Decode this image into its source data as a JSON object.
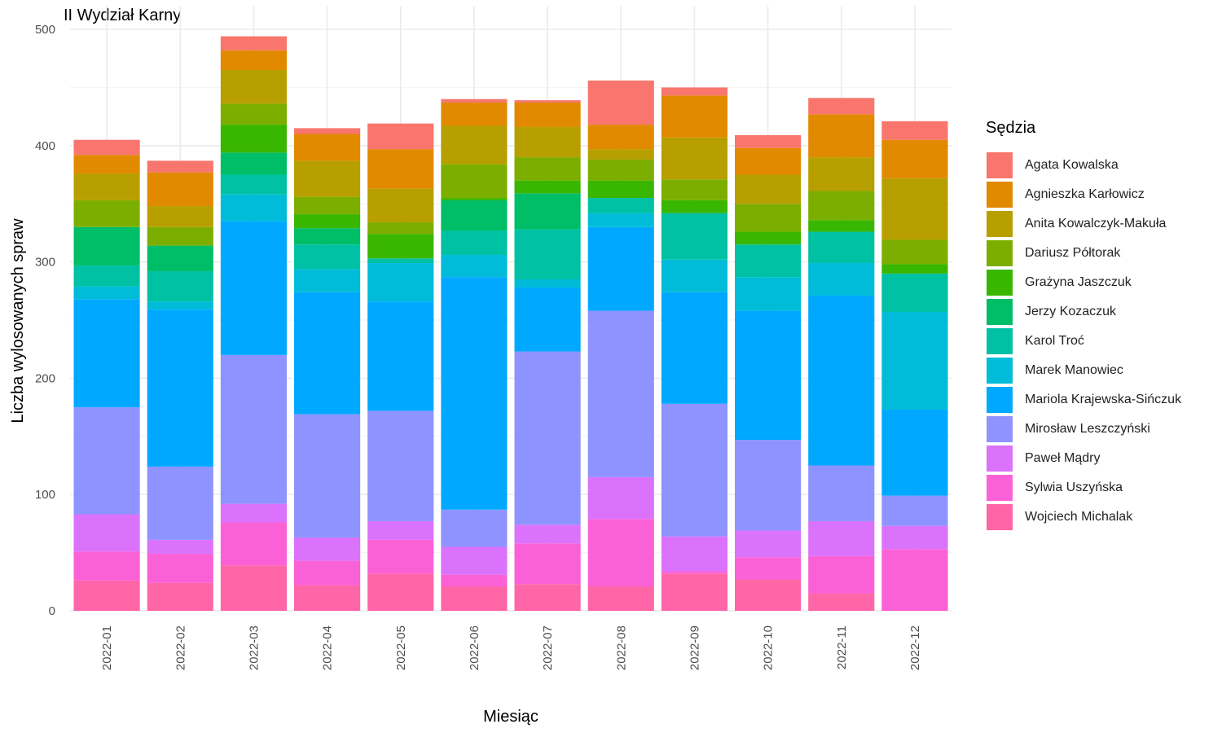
{
  "chart_data": {
    "type": "bar",
    "stacked": true,
    "title": "II Wydział Karny",
    "xlabel": "Miesiąc",
    "ylabel": "Liczba wylosowanych spraw",
    "ylim": [
      0,
      520
    ],
    "yticks": [
      0,
      100,
      200,
      300,
      400,
      500
    ],
    "grid": true,
    "legend_title": "Sędzia",
    "legend_position": "right",
    "categories": [
      "2022-01",
      "2022-02",
      "2022-03",
      "2022-04",
      "2022-05",
      "2022-06",
      "2022-07",
      "2022-08",
      "2022-09",
      "2022-10",
      "2022-11",
      "2022-12"
    ],
    "series": [
      {
        "name": "Wojciech Michalak",
        "color": "#FF66A8",
        "values": [
          26,
          24,
          39,
          22,
          32,
          21,
          23,
          21,
          32,
          27,
          15,
          0
        ]
      },
      {
        "name": "Sylwia Uszyńska",
        "color": "#FB61D7",
        "values": [
          25,
          25,
          37,
          21,
          29,
          10,
          35,
          58,
          2,
          19,
          32,
          53
        ]
      },
      {
        "name": "Paweł Mądry",
        "color": "#DB72FB",
        "values": [
          32,
          12,
          16,
          20,
          16,
          24,
          16,
          36,
          30,
          23,
          30,
          20
        ]
      },
      {
        "name": "Mirosław Leszczyński",
        "color": "#8E93FF",
        "values": [
          92,
          63,
          128,
          106,
          95,
          32,
          149,
          143,
          114,
          78,
          48,
          26
        ]
      },
      {
        "name": "Mariola Krajewska-Sińczuk",
        "color": "#00A9FF",
        "values": [
          93,
          135,
          115,
          105,
          94,
          200,
          55,
          72,
          96,
          111,
          146,
          74
        ]
      },
      {
        "name": "Marek Manowiec",
        "color": "#00BCD8",
        "values": [
          11,
          7,
          23,
          20,
          33,
          19,
          7,
          12,
          28,
          29,
          28,
          84
        ]
      },
      {
        "name": "Karol Troć",
        "color": "#00C1A3",
        "values": [
          18,
          26,
          17,
          21,
          4,
          21,
          43,
          13,
          40,
          28,
          27,
          33
        ]
      },
      {
        "name": "Jerzy Kozaczuk",
        "color": "#00BE67",
        "values": [
          33,
          22,
          19,
          14,
          0,
          26,
          31,
          0,
          0,
          0,
          0,
          0
        ]
      },
      {
        "name": "Grażyna Jaszczuk",
        "color": "#39B600",
        "values": [
          0,
          0,
          24,
          12,
          21,
          2,
          11,
          15,
          11,
          11,
          10,
          8
        ]
      },
      {
        "name": "Dariusz Półtorak",
        "color": "#7CAE00",
        "values": [
          23,
          16,
          18,
          15,
          10,
          29,
          20,
          18,
          18,
          24,
          25,
          21
        ]
      },
      {
        "name": "Anita Kowalczyk-Makuła",
        "color": "#B79F00",
        "values": [
          23,
          18,
          29,
          31,
          29,
          33,
          26,
          9,
          36,
          25,
          29,
          53
        ]
      },
      {
        "name": "Agnieszka Karłowicz",
        "color": "#E18A00",
        "values": [
          16,
          29,
          17,
          23,
          34,
          20,
          21,
          21,
          36,
          23,
          37,
          33
        ]
      },
      {
        "name": "Agata Kowalska",
        "color": "#F8766D",
        "values": [
          13,
          10,
          12,
          5,
          22,
          3,
          2,
          38,
          7,
          11,
          14,
          16
        ]
      }
    ]
  },
  "legend_order": [
    "Agata Kowalska",
    "Agnieszka Karłowicz",
    "Anita Kowalczyk-Makuła",
    "Dariusz Półtorak",
    "Grażyna Jaszczuk",
    "Jerzy Kozaczuk",
    "Karol Troć",
    "Marek Manowiec",
    "Mariola Krajewska-Sińczuk",
    "Mirosław Leszczyński",
    "Paweł Mądry",
    "Sylwia Uszyńska",
    "Wojciech Michalak"
  ]
}
